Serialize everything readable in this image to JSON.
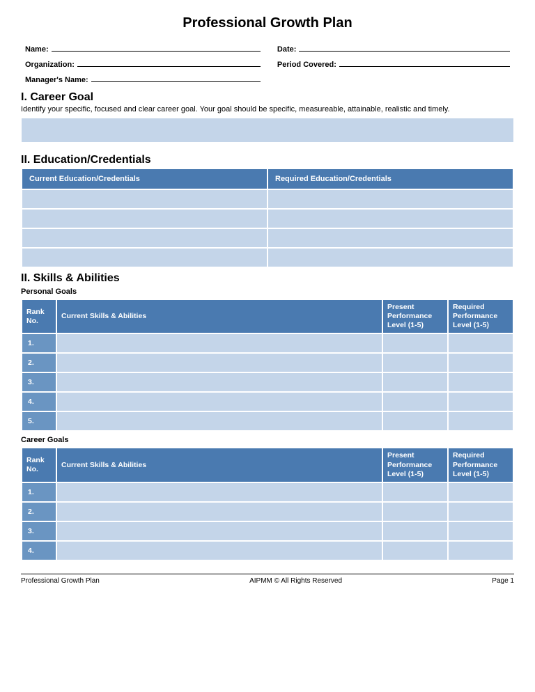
{
  "colors": {
    "header_blue": "#4a7ab0",
    "row_blue": "#c4d5e9",
    "rank_blue": "#6a95c2",
    "white": "#ffffff"
  },
  "title": "Professional Growth Plan",
  "meta": {
    "name_label": "Name:",
    "date_label": "Date:",
    "org_label": "Organization:",
    "period_label": "Period Covered:",
    "manager_label": "Manager's Name:"
  },
  "s1": {
    "heading": "I. Career Goal",
    "desc": "Identify your specific, focused and clear career goal. Your goal should be specific, measureable, attainable, realistic and timely."
  },
  "s2": {
    "heading": "II. Education/Credentials",
    "cols": [
      "Current Education/Credentials",
      "Required Education/Credentials"
    ],
    "rows": 4
  },
  "s3": {
    "heading": "II. Skills & Abilities",
    "sub_personal": "Personal Goals",
    "sub_career": "Career Goals",
    "cols": {
      "rank": "Rank No.",
      "skills": "Current Skills & Abilities",
      "present": "Present Performance Level (1-5)",
      "required": "Required Performance Level (1-5)"
    },
    "personal_ranks": [
      "1.",
      "2.",
      "3.",
      "4.",
      "5."
    ],
    "career_ranks": [
      "1.",
      "2.",
      "3.",
      "4."
    ]
  },
  "footer": {
    "left": "Professional Growth Plan",
    "center": "AIPMM © All Rights Reserved",
    "right": "Page 1"
  }
}
